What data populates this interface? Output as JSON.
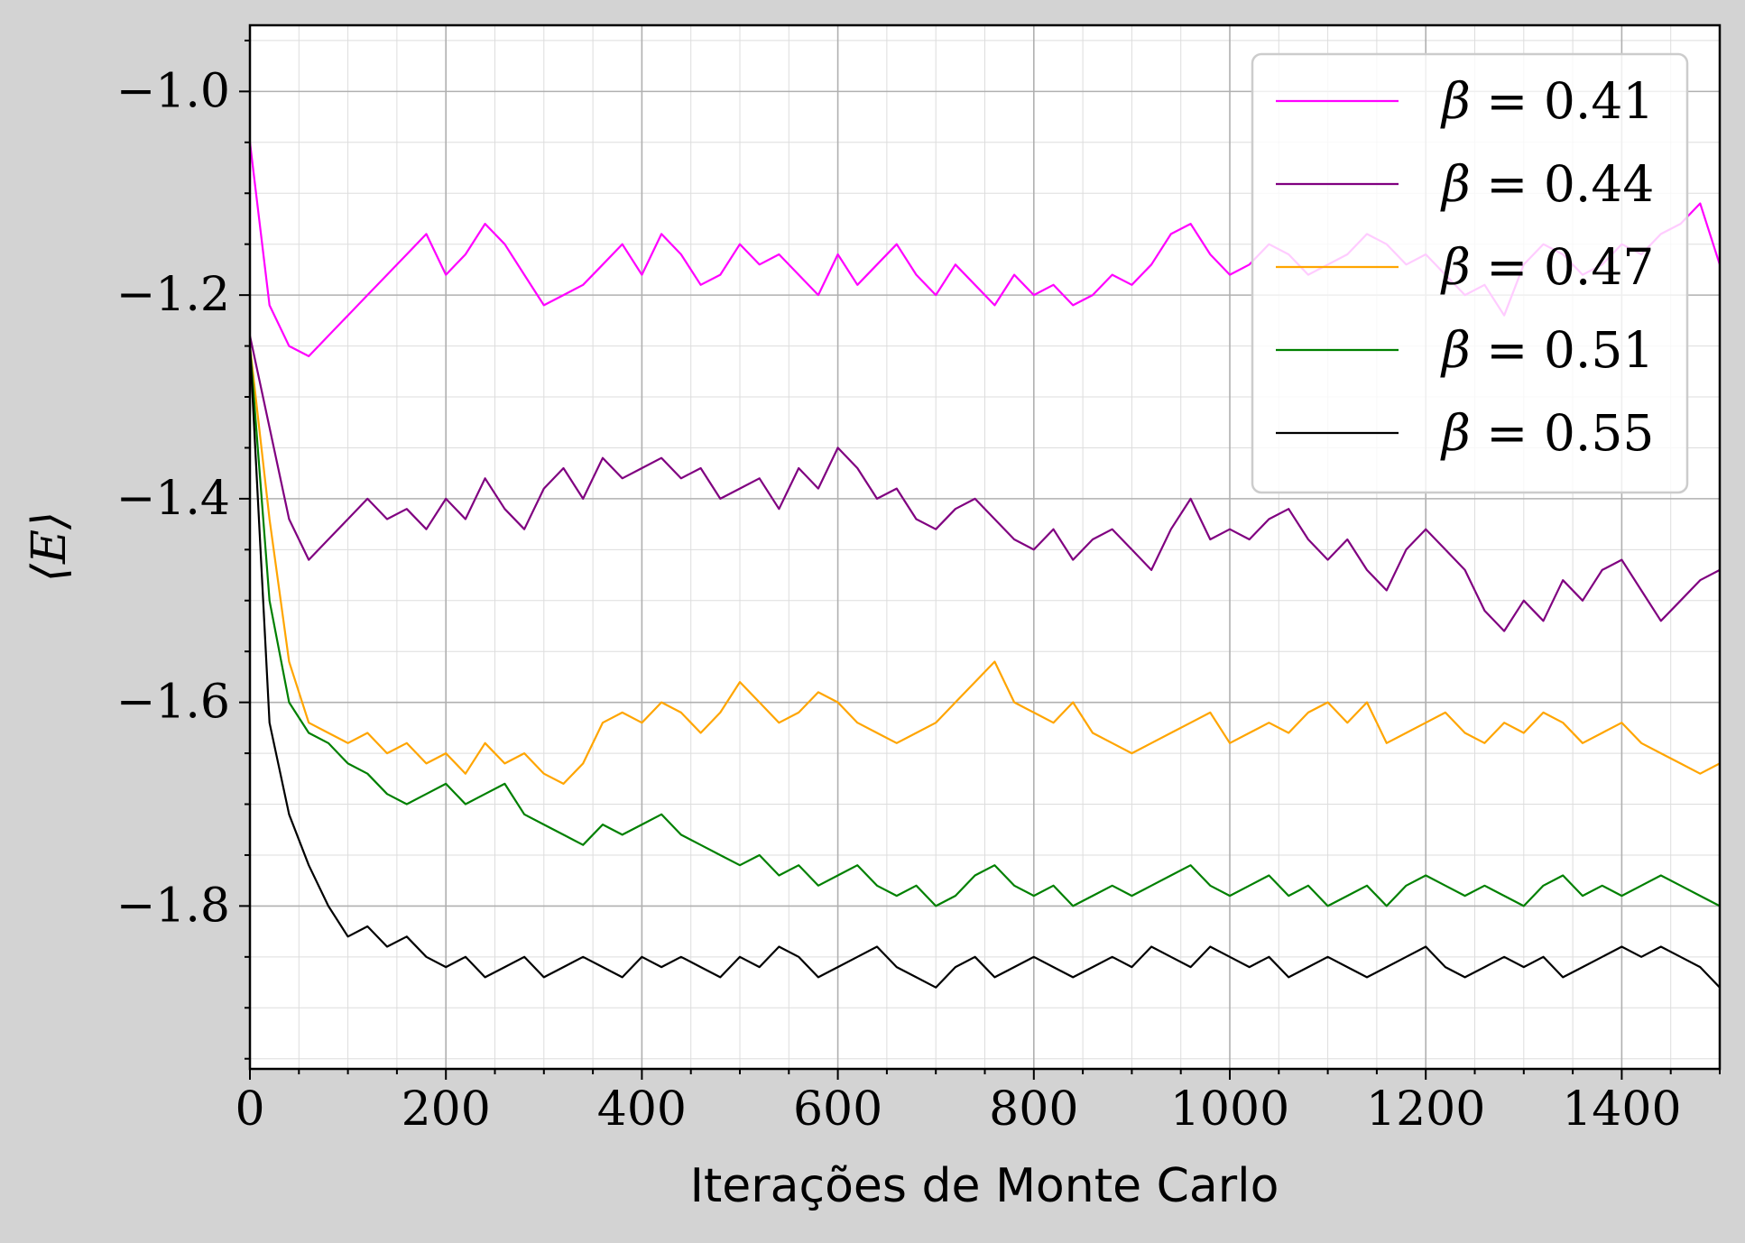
{
  "chart_data": {
    "type": "line",
    "xlabel": "Iterações de Monte Carlo",
    "ylabel": "⟨E⟩",
    "xlim": [
      0,
      1500
    ],
    "ylim": [
      -1.96,
      -0.935
    ],
    "x_ticks": [
      0,
      200,
      400,
      600,
      800,
      1000,
      1200,
      1400
    ],
    "x_tick_labels": [
      "0",
      "200",
      "400",
      "600",
      "800",
      "1000",
      "1200",
      "1400"
    ],
    "y_ticks": [
      -1.0,
      -1.2,
      -1.4,
      -1.6,
      -1.8
    ],
    "y_tick_labels": [
      "−1.0",
      "−1.2",
      "−1.4",
      "−1.6",
      "−1.8"
    ],
    "grid": true,
    "minor_grid": true,
    "legend_position": "top-right",
    "series": [
      {
        "name": "β = 0.41",
        "symbol": "β",
        "rest": " = 0.41",
        "color": "#ff00ff",
        "x": [
          0,
          20,
          40,
          60,
          80,
          100,
          120,
          140,
          160,
          180,
          200,
          220,
          240,
          260,
          280,
          300,
          320,
          340,
          360,
          380,
          400,
          420,
          440,
          460,
          480,
          500,
          520,
          540,
          560,
          580,
          600,
          620,
          640,
          660,
          680,
          700,
          720,
          740,
          760,
          780,
          800,
          820,
          840,
          860,
          880,
          900,
          920,
          940,
          960,
          980,
          1000,
          1020,
          1040,
          1060,
          1080,
          1100,
          1120,
          1140,
          1160,
          1180,
          1200,
          1220,
          1240,
          1260,
          1280,
          1300,
          1320,
          1340,
          1360,
          1380,
          1400,
          1420,
          1440,
          1460,
          1480,
          1500
        ],
        "y": [
          -1.05,
          -1.21,
          -1.25,
          -1.26,
          -1.24,
          -1.22,
          -1.2,
          -1.18,
          -1.16,
          -1.14,
          -1.18,
          -1.16,
          -1.13,
          -1.15,
          -1.18,
          -1.21,
          -1.2,
          -1.19,
          -1.17,
          -1.15,
          -1.18,
          -1.14,
          -1.16,
          -1.19,
          -1.18,
          -1.15,
          -1.17,
          -1.16,
          -1.18,
          -1.2,
          -1.16,
          -1.19,
          -1.17,
          -1.15,
          -1.18,
          -1.2,
          -1.17,
          -1.19,
          -1.21,
          -1.18,
          -1.2,
          -1.19,
          -1.21,
          -1.2,
          -1.18,
          -1.19,
          -1.17,
          -1.14,
          -1.13,
          -1.16,
          -1.18,
          -1.17,
          -1.15,
          -1.16,
          -1.18,
          -1.17,
          -1.16,
          -1.14,
          -1.15,
          -1.17,
          -1.16,
          -1.18,
          -1.2,
          -1.19,
          -1.22,
          -1.17,
          -1.15,
          -1.16,
          -1.18,
          -1.17,
          -1.15,
          -1.16,
          -1.14,
          -1.13,
          -1.11,
          -1.17
        ]
      },
      {
        "name": "β = 0.44",
        "symbol": "β",
        "rest": " = 0.44",
        "color": "#800080",
        "x": [
          0,
          20,
          40,
          60,
          80,
          100,
          120,
          140,
          160,
          180,
          200,
          220,
          240,
          260,
          280,
          300,
          320,
          340,
          360,
          380,
          400,
          420,
          440,
          460,
          480,
          500,
          520,
          540,
          560,
          580,
          600,
          620,
          640,
          660,
          680,
          700,
          720,
          740,
          760,
          780,
          800,
          820,
          840,
          860,
          880,
          900,
          920,
          940,
          960,
          980,
          1000,
          1020,
          1040,
          1060,
          1080,
          1100,
          1120,
          1140,
          1160,
          1180,
          1200,
          1220,
          1240,
          1260,
          1280,
          1300,
          1320,
          1340,
          1360,
          1380,
          1400,
          1420,
          1440,
          1460,
          1480,
          1500
        ],
        "y": [
          -1.24,
          -1.33,
          -1.42,
          -1.46,
          -1.44,
          -1.42,
          -1.4,
          -1.42,
          -1.41,
          -1.43,
          -1.4,
          -1.42,
          -1.38,
          -1.41,
          -1.43,
          -1.39,
          -1.37,
          -1.4,
          -1.36,
          -1.38,
          -1.37,
          -1.36,
          -1.38,
          -1.37,
          -1.4,
          -1.39,
          -1.38,
          -1.41,
          -1.37,
          -1.39,
          -1.35,
          -1.37,
          -1.4,
          -1.39,
          -1.42,
          -1.43,
          -1.41,
          -1.4,
          -1.42,
          -1.44,
          -1.45,
          -1.43,
          -1.46,
          -1.44,
          -1.43,
          -1.45,
          -1.47,
          -1.43,
          -1.4,
          -1.44,
          -1.43,
          -1.44,
          -1.42,
          -1.41,
          -1.44,
          -1.46,
          -1.44,
          -1.47,
          -1.49,
          -1.45,
          -1.43,
          -1.45,
          -1.47,
          -1.51,
          -1.53,
          -1.5,
          -1.52,
          -1.48,
          -1.5,
          -1.47,
          -1.46,
          -1.49,
          -1.52,
          -1.5,
          -1.48,
          -1.47
        ]
      },
      {
        "name": "β = 0.47",
        "symbol": "β",
        "rest": " = 0.47",
        "color": "#ffa500",
        "x": [
          0,
          20,
          40,
          60,
          80,
          100,
          120,
          140,
          160,
          180,
          200,
          220,
          240,
          260,
          280,
          300,
          320,
          340,
          360,
          380,
          400,
          420,
          440,
          460,
          480,
          500,
          520,
          540,
          560,
          580,
          600,
          620,
          640,
          660,
          680,
          700,
          720,
          740,
          760,
          780,
          800,
          820,
          840,
          860,
          880,
          900,
          920,
          940,
          960,
          980,
          1000,
          1020,
          1040,
          1060,
          1080,
          1100,
          1120,
          1140,
          1160,
          1180,
          1200,
          1220,
          1240,
          1260,
          1280,
          1300,
          1320,
          1340,
          1360,
          1380,
          1400,
          1420,
          1440,
          1460,
          1480,
          1500
        ],
        "y": [
          -1.25,
          -1.42,
          -1.56,
          -1.62,
          -1.63,
          -1.64,
          -1.63,
          -1.65,
          -1.64,
          -1.66,
          -1.65,
          -1.67,
          -1.64,
          -1.66,
          -1.65,
          -1.67,
          -1.68,
          -1.66,
          -1.62,
          -1.61,
          -1.62,
          -1.6,
          -1.61,
          -1.63,
          -1.61,
          -1.58,
          -1.6,
          -1.62,
          -1.61,
          -1.59,
          -1.6,
          -1.62,
          -1.63,
          -1.64,
          -1.63,
          -1.62,
          -1.6,
          -1.58,
          -1.56,
          -1.6,
          -1.61,
          -1.62,
          -1.6,
          -1.63,
          -1.64,
          -1.65,
          -1.64,
          -1.63,
          -1.62,
          -1.61,
          -1.64,
          -1.63,
          -1.62,
          -1.63,
          -1.61,
          -1.6,
          -1.62,
          -1.6,
          -1.64,
          -1.63,
          -1.62,
          -1.61,
          -1.63,
          -1.64,
          -1.62,
          -1.63,
          -1.61,
          -1.62,
          -1.64,
          -1.63,
          -1.62,
          -1.64,
          -1.65,
          -1.66,
          -1.67,
          -1.66
        ]
      },
      {
        "name": "β = 0.51",
        "symbol": "β",
        "rest": " = 0.51",
        "color": "#008000",
        "x": [
          0,
          20,
          40,
          60,
          80,
          100,
          120,
          140,
          160,
          180,
          200,
          220,
          240,
          260,
          280,
          300,
          320,
          340,
          360,
          380,
          400,
          420,
          440,
          460,
          480,
          500,
          520,
          540,
          560,
          580,
          600,
          620,
          640,
          660,
          680,
          700,
          720,
          740,
          760,
          780,
          800,
          820,
          840,
          860,
          880,
          900,
          920,
          940,
          960,
          980,
          1000,
          1020,
          1040,
          1060,
          1080,
          1100,
          1120,
          1140,
          1160,
          1180,
          1200,
          1220,
          1240,
          1260,
          1280,
          1300,
          1320,
          1340,
          1360,
          1380,
          1400,
          1420,
          1440,
          1460,
          1480,
          1500
        ],
        "y": [
          -1.25,
          -1.5,
          -1.6,
          -1.63,
          -1.64,
          -1.66,
          -1.67,
          -1.69,
          -1.7,
          -1.69,
          -1.68,
          -1.7,
          -1.69,
          -1.68,
          -1.71,
          -1.72,
          -1.73,
          -1.74,
          -1.72,
          -1.73,
          -1.72,
          -1.71,
          -1.73,
          -1.74,
          -1.75,
          -1.76,
          -1.75,
          -1.77,
          -1.76,
          -1.78,
          -1.77,
          -1.76,
          -1.78,
          -1.79,
          -1.78,
          -1.8,
          -1.79,
          -1.77,
          -1.76,
          -1.78,
          -1.79,
          -1.78,
          -1.8,
          -1.79,
          -1.78,
          -1.79,
          -1.78,
          -1.77,
          -1.76,
          -1.78,
          -1.79,
          -1.78,
          -1.77,
          -1.79,
          -1.78,
          -1.8,
          -1.79,
          -1.78,
          -1.8,
          -1.78,
          -1.77,
          -1.78,
          -1.79,
          -1.78,
          -1.79,
          -1.8,
          -1.78,
          -1.77,
          -1.79,
          -1.78,
          -1.79,
          -1.78,
          -1.77,
          -1.78,
          -1.79,
          -1.8
        ]
      },
      {
        "name": "β = 0.55",
        "symbol": "β",
        "rest": " = 0.55",
        "color": "#000000",
        "x": [
          0,
          20,
          40,
          60,
          80,
          100,
          120,
          140,
          160,
          180,
          200,
          220,
          240,
          260,
          280,
          300,
          320,
          340,
          360,
          380,
          400,
          420,
          440,
          460,
          480,
          500,
          520,
          540,
          560,
          580,
          600,
          620,
          640,
          660,
          680,
          700,
          720,
          740,
          760,
          780,
          800,
          820,
          840,
          860,
          880,
          900,
          920,
          940,
          960,
          980,
          1000,
          1020,
          1040,
          1060,
          1080,
          1100,
          1120,
          1140,
          1160,
          1180,
          1200,
          1220,
          1240,
          1260,
          1280,
          1300,
          1320,
          1340,
          1360,
          1380,
          1400,
          1420,
          1440,
          1460,
          1480,
          1500
        ],
        "y": [
          -1.25,
          -1.62,
          -1.71,
          -1.76,
          -1.8,
          -1.83,
          -1.82,
          -1.84,
          -1.83,
          -1.85,
          -1.86,
          -1.85,
          -1.87,
          -1.86,
          -1.85,
          -1.87,
          -1.86,
          -1.85,
          -1.86,
          -1.87,
          -1.85,
          -1.86,
          -1.85,
          -1.86,
          -1.87,
          -1.85,
          -1.86,
          -1.84,
          -1.85,
          -1.87,
          -1.86,
          -1.85,
          -1.84,
          -1.86,
          -1.87,
          -1.88,
          -1.86,
          -1.85,
          -1.87,
          -1.86,
          -1.85,
          -1.86,
          -1.87,
          -1.86,
          -1.85,
          -1.86,
          -1.84,
          -1.85,
          -1.86,
          -1.84,
          -1.85,
          -1.86,
          -1.85,
          -1.87,
          -1.86,
          -1.85,
          -1.86,
          -1.87,
          -1.86,
          -1.85,
          -1.84,
          -1.86,
          -1.87,
          -1.86,
          -1.85,
          -1.86,
          -1.85,
          -1.87,
          -1.86,
          -1.85,
          -1.84,
          -1.85,
          -1.84,
          -1.85,
          -1.86,
          -1.88
        ]
      }
    ]
  }
}
